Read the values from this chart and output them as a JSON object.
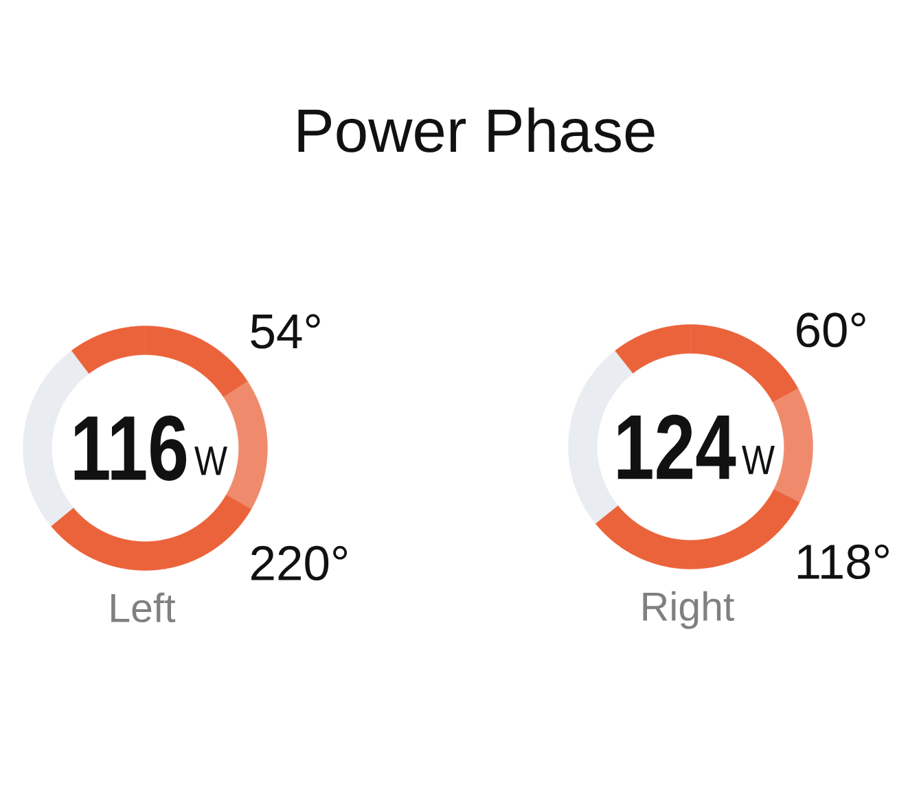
{
  "chart_data": [
    {
      "type": "donut",
      "title": "Power Phase",
      "xlabel": "Left",
      "categories": [
        null,
        null,
        null,
        null,
        null
      ],
      "values": [
        15.8,
        17.5,
        30.7,
        25.7,
        10.3
      ],
      "colors": [
        "#eb633b",
        "#ef8b6c",
        "#eb633b",
        "#e9ecf0",
        "#eb633b"
      ],
      "annotations": [
        "116",
        "W",
        "54°",
        "220°"
      ]
    },
    {
      "type": "donut",
      "xlabel": "Right",
      "categories": [
        null,
        null,
        null,
        null,
        null
      ],
      "values": [
        17.1,
        15.4,
        31.7,
        25.2,
        10.6
      ],
      "colors": [
        "#eb633b",
        "#ef8b6c",
        "#eb633b",
        "#e9ecf0",
        "#eb633b"
      ],
      "annotations": [
        "124",
        "W",
        "60°",
        "118°"
      ]
    }
  ]
}
